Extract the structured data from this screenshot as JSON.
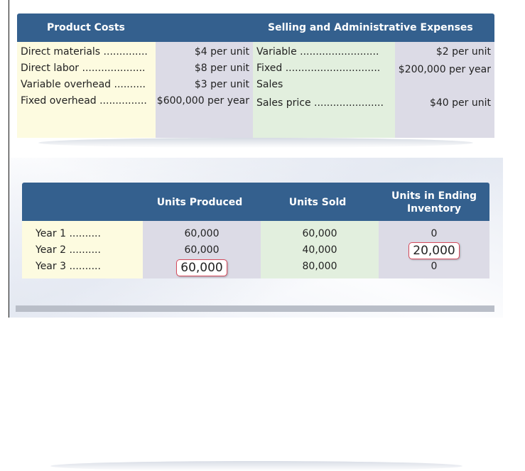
{
  "cost_table": {
    "header_left": "Product Costs",
    "header_right": "Selling and Administrative Expenses",
    "product_costs": [
      {
        "label": "Direct materials ..............",
        "value": "$4 per unit"
      },
      {
        "label": "Direct labor ....................",
        "value": "$8 per unit"
      },
      {
        "label": "Variable overhead ..........",
        "value": "$3 per unit"
      },
      {
        "label": "Fixed overhead ...............",
        "value": "$600,000 per year"
      }
    ],
    "selling_admin": [
      {
        "label": "Variable .........................",
        "value": "$2 per unit"
      },
      {
        "label": "Fixed ..............................",
        "value": "$200,000 per year"
      },
      {
        "label": "Sales",
        "value": ""
      },
      {
        "label": "Sales price ......................",
        "value": "$40 per unit"
      }
    ]
  },
  "units_table": {
    "headers": [
      "",
      "Units Produced",
      "Units Sold",
      "Units in Ending Inventory"
    ],
    "rows": [
      {
        "year": "Year 1 ..........",
        "produced": "60,000",
        "sold": "60,000",
        "ending": "0"
      },
      {
        "year": "Year 2 ..........",
        "produced": "60,000",
        "sold": "40,000",
        "ending": "20,000"
      },
      {
        "year": "Year 3 ..........",
        "produced": "60,000",
        "sold": "80,000",
        "ending": "0"
      }
    ]
  },
  "colors": {
    "header_blue": "#34608e",
    "cream": "#fdfbe0",
    "lavender": "#dcdbe6",
    "mint": "#e2efde",
    "highlight_border": "#d64a5c"
  }
}
